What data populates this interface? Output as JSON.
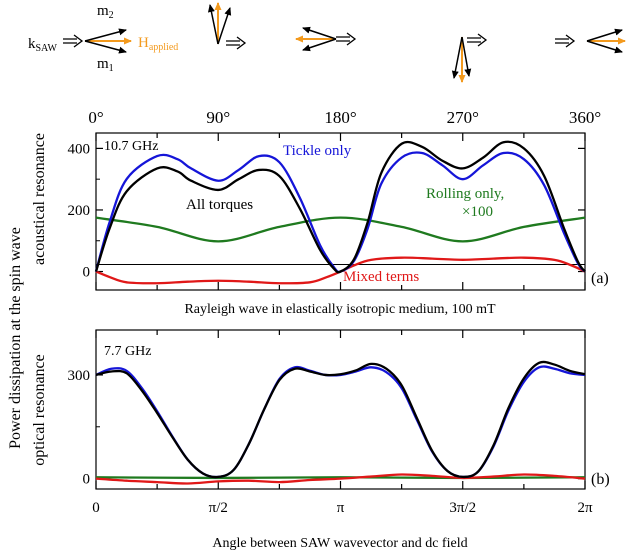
{
  "header": {
    "k_saw": {
      "base": "k",
      "sub": "SAW"
    },
    "m2": {
      "base": "m",
      "sub": "2"
    },
    "m1": {
      "base": "m",
      "sub": "1"
    },
    "h_applied": {
      "base": "H",
      "sub": "applied"
    }
  },
  "ylabel_main": "Power dissipation at the spin wave",
  "xlabel": "Angle between SAW wavevector and dc field",
  "colors": {
    "total": "#000000",
    "tickle": "#1515d8",
    "rolling": "#1f7a1f",
    "mixed": "#e01818",
    "field": "#f39a1e"
  },
  "chart_data": [
    {
      "type": "line",
      "panel": "(a)",
      "frequency": "10.7 GHz",
      "ylabel": "acoustical resonance",
      "caption": "Rayleigh wave in elastically isotropic medium, 100 mT",
      "top_ticks": [
        "0°",
        "90°",
        "180°",
        "270°",
        "360°"
      ],
      "y_ticks": [
        "0",
        "200",
        "400"
      ],
      "ylim": [
        -60,
        450
      ],
      "xlim_deg": [
        0,
        360
      ],
      "series_labels": {
        "total": "All torques",
        "tickle": "Tickle only",
        "rolling": "Rolling only,",
        "rolling_scale": "×100",
        "mixed": "Mixed terms"
      },
      "series": [
        {
          "key": "total",
          "x": [
            0,
            10,
            22.5,
            45,
            60,
            70,
            90,
            105,
            120,
            135,
            150,
            165,
            175,
            180,
            190,
            200,
            210,
            225,
            240,
            255,
            270,
            285,
            300,
            315,
            330,
            345,
            355,
            360
          ],
          "y": [
            0,
            140,
            260,
            335,
            325,
            295,
            265,
            300,
            330,
            310,
            205,
            70,
            10,
            0,
            40,
            160,
            320,
            415,
            405,
            360,
            335,
            370,
            420,
            400,
            310,
            135,
            30,
            0
          ]
        },
        {
          "key": "tickle",
          "x": [
            0,
            10,
            22.5,
            45,
            60,
            70,
            90,
            105,
            120,
            135,
            150,
            165,
            175,
            180,
            190,
            200,
            210,
            225,
            240,
            255,
            270,
            285,
            300,
            315,
            330,
            345,
            355,
            360
          ],
          "y": [
            0,
            160,
            300,
            375,
            365,
            335,
            295,
            330,
            375,
            355,
            240,
            85,
            15,
            0,
            35,
            140,
            285,
            370,
            385,
            345,
            300,
            345,
            385,
            365,
            280,
            120,
            25,
            0
          ]
        },
        {
          "key": "rolling",
          "x": [
            0,
            45,
            90,
            135,
            180,
            225,
            270,
            315,
            360
          ],
          "y": [
            175,
            145,
            98,
            145,
            175,
            145,
            98,
            145,
            175
          ]
        },
        {
          "key": "mixed",
          "x": [
            0,
            10,
            22.5,
            45,
            67.5,
            90,
            112.5,
            135,
            157.5,
            170,
            180,
            190,
            202.5,
            225,
            247.5,
            270,
            292.5,
            315,
            337.5,
            350,
            360
          ],
          "y": [
            0,
            -18,
            -35,
            -38,
            -33,
            -30,
            -33,
            -38,
            -35,
            -18,
            0,
            20,
            38,
            45,
            42,
            38,
            42,
            45,
            38,
            20,
            0
          ]
        }
      ]
    },
    {
      "type": "line",
      "panel": "(b)",
      "frequency": "7.7 GHz",
      "ylabel": "optical resonance",
      "x_ticks": [
        "0",
        "π/2",
        "π",
        "3π/2",
        "2π"
      ],
      "y_ticks": [
        "0",
        "300"
      ],
      "ylim": [
        -30,
        430
      ],
      "xlim_deg": [
        0,
        360
      ],
      "series": [
        {
          "key": "total",
          "x": [
            0,
            11.25,
            22.5,
            33.75,
            45,
            56.25,
            67.5,
            78.75,
            90,
            101.25,
            112.5,
            123.75,
            135,
            146.25,
            157.5,
            168.75,
            180,
            191.25,
            202.5,
            213.75,
            225,
            236.25,
            247.5,
            258.75,
            270,
            281.25,
            292.5,
            303.75,
            315,
            326.25,
            337.5,
            348.75,
            360
          ],
          "y": [
            300,
            310,
            305,
            255,
            190,
            120,
            55,
            15,
            5,
            25,
            100,
            200,
            285,
            318,
            310,
            300,
            302,
            313,
            332,
            318,
            270,
            175,
            80,
            22,
            5,
            20,
            95,
            205,
            290,
            335,
            330,
            312,
            302
          ]
        },
        {
          "key": "tickle",
          "x": [
            0,
            11.25,
            22.5,
            33.75,
            45,
            56.25,
            67.5,
            78.75,
            90,
            101.25,
            112.5,
            123.75,
            135,
            146.25,
            157.5,
            168.75,
            180,
            191.25,
            202.5,
            213.75,
            225,
            236.25,
            247.5,
            258.75,
            270,
            281.25,
            292.5,
            303.75,
            315,
            326.25,
            337.5,
            348.75,
            360
          ],
          "y": [
            300,
            318,
            312,
            262,
            195,
            122,
            55,
            15,
            5,
            25,
            100,
            200,
            288,
            322,
            312,
            300,
            300,
            310,
            322,
            308,
            262,
            170,
            78,
            22,
            5,
            20,
            92,
            198,
            280,
            322,
            318,
            305,
            300
          ]
        },
        {
          "key": "rolling",
          "x": [
            0,
            90,
            180,
            270,
            360
          ],
          "y": [
            4,
            2,
            4,
            2,
            4
          ]
        },
        {
          "key": "mixed",
          "x": [
            0,
            22.5,
            45,
            67.5,
            90,
            112.5,
            135,
            157.5,
            180,
            202.5,
            225,
            247.5,
            270,
            292.5,
            315,
            337.5,
            360
          ],
          "y": [
            0,
            -6,
            -10,
            -14,
            -8,
            -6,
            -10,
            -4,
            0,
            6,
            12,
            8,
            2,
            6,
            12,
            8,
            0
          ]
        }
      ]
    }
  ]
}
